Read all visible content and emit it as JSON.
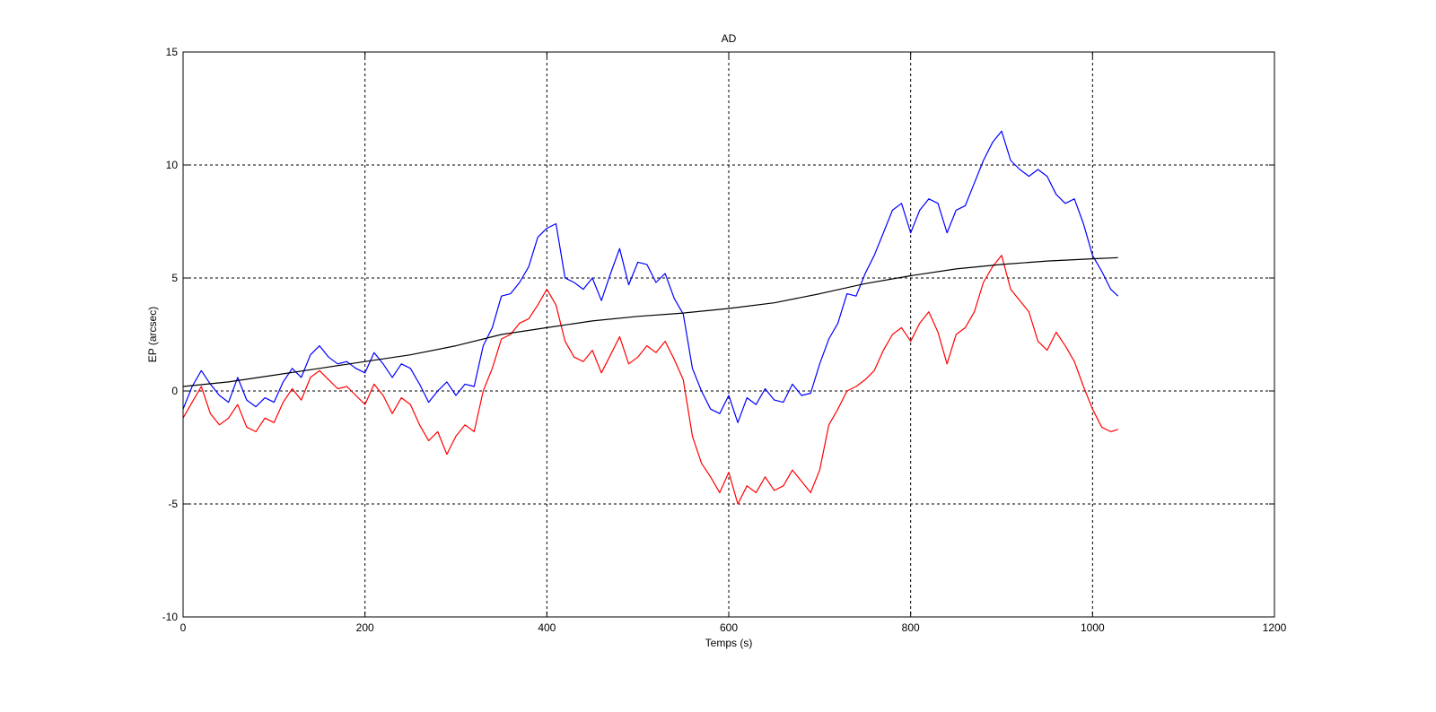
{
  "chart_data": {
    "type": "line",
    "title": "AD",
    "xlabel": "Temps (s)",
    "ylabel": "EP (arcsec)",
    "xlim": [
      0,
      1200
    ],
    "ylim": [
      -10,
      15
    ],
    "xticks": [
      0,
      200,
      400,
      600,
      800,
      1000,
      1200
    ],
    "yticks": [
      -10,
      -5,
      0,
      5,
      10,
      15
    ],
    "xtick_labels": [
      "0",
      "200",
      "400",
      "600",
      "800",
      "1000",
      "1200"
    ],
    "ytick_labels": [
      "-10",
      "-5",
      "0",
      "5",
      "10",
      "15"
    ],
    "grid": true,
    "legend": "none",
    "series": [
      {
        "color": "#0000ff",
        "x": [
          0,
          10,
          20,
          30,
          40,
          50,
          60,
          70,
          80,
          90,
          100,
          110,
          120,
          130,
          140,
          150,
          160,
          170,
          180,
          190,
          200,
          210,
          220,
          230,
          240,
          250,
          260,
          270,
          280,
          290,
          300,
          310,
          320,
          330,
          340,
          350,
          360,
          370,
          380,
          390,
          400,
          410,
          420,
          430,
          440,
          450,
          460,
          470,
          480,
          490,
          500,
          510,
          520,
          530,
          540,
          550,
          560,
          570,
          580,
          590,
          600,
          610,
          620,
          630,
          640,
          650,
          660,
          670,
          680,
          690,
          700,
          710,
          720,
          730,
          740,
          750,
          760,
          770,
          780,
          790,
          800,
          810,
          820,
          830,
          840,
          850,
          860,
          870,
          880,
          890,
          900,
          910,
          920,
          930,
          940,
          950,
          960,
          970,
          980,
          990,
          1000,
          1010,
          1020,
          1028
        ],
        "y": [
          -0.8,
          0.2,
          0.9,
          0.3,
          -0.2,
          -0.5,
          0.6,
          -0.4,
          -0.7,
          -0.3,
          -0.5,
          0.4,
          1.0,
          0.6,
          1.6,
          2.0,
          1.5,
          1.2,
          1.3,
          1.0,
          0.8,
          1.7,
          1.2,
          0.6,
          1.2,
          1.0,
          0.3,
          -0.5,
          0.0,
          0.4,
          -0.2,
          0.3,
          0.2,
          2.0,
          2.8,
          4.2,
          4.3,
          4.8,
          5.5,
          6.8,
          7.2,
          7.4,
          5.0,
          4.8,
          4.5,
          5.0,
          4.0,
          5.2,
          6.3,
          4.7,
          5.7,
          5.6,
          4.8,
          5.2,
          4.1,
          3.4,
          1.0,
          0.0,
          -0.8,
          -1.0,
          -0.2,
          -1.4,
          -0.3,
          -0.6,
          0.1,
          -0.4,
          -0.5,
          0.3,
          -0.2,
          -0.1,
          1.2,
          2.3,
          3.0,
          4.3,
          4.2,
          5.2,
          6.0,
          7.0,
          8.0,
          8.3,
          7.0,
          8.0,
          8.5,
          8.3,
          7.0,
          8.0,
          8.2,
          9.2,
          10.2,
          11.0,
          11.5,
          10.2,
          9.8,
          9.5,
          9.8,
          9.5,
          8.7,
          8.3,
          8.5,
          7.4,
          6.0,
          5.3,
          4.5,
          4.2
        ]
      },
      {
        "color": "#ff0000",
        "x": [
          0,
          10,
          20,
          30,
          40,
          50,
          60,
          70,
          80,
          90,
          100,
          110,
          120,
          130,
          140,
          150,
          160,
          170,
          180,
          190,
          200,
          210,
          220,
          230,
          240,
          250,
          260,
          270,
          280,
          290,
          300,
          310,
          320,
          330,
          340,
          350,
          360,
          370,
          380,
          390,
          400,
          410,
          420,
          430,
          440,
          450,
          460,
          470,
          480,
          490,
          500,
          510,
          520,
          530,
          540,
          550,
          560,
          570,
          580,
          590,
          600,
          610,
          620,
          630,
          640,
          650,
          660,
          670,
          680,
          690,
          700,
          710,
          720,
          730,
          740,
          750,
          760,
          770,
          780,
          790,
          800,
          810,
          820,
          830,
          840,
          850,
          860,
          870,
          880,
          890,
          900,
          910,
          920,
          930,
          940,
          950,
          960,
          970,
          980,
          990,
          1000,
          1010,
          1020,
          1028
        ],
        "y": [
          -1.2,
          -0.5,
          0.2,
          -1.0,
          -1.5,
          -1.2,
          -0.6,
          -1.6,
          -1.8,
          -1.2,
          -1.4,
          -0.5,
          0.1,
          -0.4,
          0.6,
          0.9,
          0.5,
          0.1,
          0.2,
          -0.2,
          -0.6,
          0.3,
          -0.2,
          -1.0,
          -0.3,
          -0.6,
          -1.5,
          -2.2,
          -1.8,
          -2.8,
          -2.0,
          -1.5,
          -1.8,
          0.0,
          1.0,
          2.3,
          2.5,
          3.0,
          3.2,
          3.8,
          4.5,
          3.8,
          2.2,
          1.5,
          1.3,
          1.8,
          0.8,
          1.6,
          2.4,
          1.2,
          1.5,
          2.0,
          1.7,
          2.2,
          1.4,
          0.5,
          -2.0,
          -3.2,
          -3.8,
          -4.5,
          -3.6,
          -5.0,
          -4.2,
          -4.5,
          -3.8,
          -4.4,
          -4.2,
          -3.5,
          -4.0,
          -4.5,
          -3.5,
          -1.5,
          -0.8,
          0.0,
          0.2,
          0.5,
          0.9,
          1.8,
          2.5,
          2.8,
          2.2,
          3.0,
          3.5,
          2.6,
          1.2,
          2.5,
          2.8,
          3.5,
          4.8,
          5.5,
          6.0,
          4.5,
          4.0,
          3.5,
          2.2,
          1.8,
          2.6,
          2.0,
          1.3,
          0.2,
          -0.8,
          -1.6,
          -1.8,
          -1.7
        ]
      },
      {
        "color": "#000000",
        "x": [
          0,
          50,
          100,
          150,
          200,
          250,
          300,
          350,
          400,
          450,
          500,
          550,
          600,
          650,
          700,
          750,
          800,
          850,
          900,
          950,
          1000,
          1028
        ],
        "y": [
          0.2,
          0.4,
          0.7,
          1.0,
          1.3,
          1.6,
          2.0,
          2.5,
          2.8,
          3.1,
          3.3,
          3.45,
          3.65,
          3.9,
          4.3,
          4.75,
          5.1,
          5.4,
          5.6,
          5.75,
          5.85,
          5.9
        ]
      }
    ]
  }
}
